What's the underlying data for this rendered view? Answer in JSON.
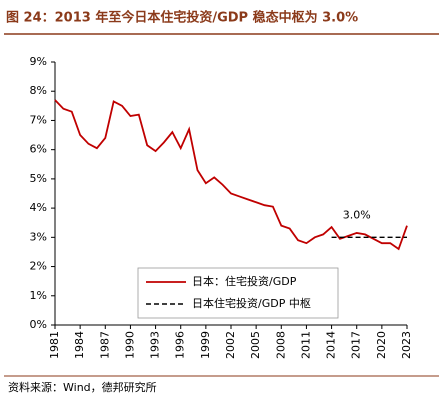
{
  "chart_data": {
    "type": "line",
    "title": "图 24：2013 年至今日本住宅投资/GDP 稳态中枢为 3.0%",
    "source": "资料来源：Wind，德邦研究所",
    "annotation": "3.0%",
    "x": [
      1981,
      1982,
      1983,
      1984,
      1985,
      1986,
      1987,
      1988,
      1989,
      1990,
      1991,
      1992,
      1993,
      1994,
      1995,
      1996,
      1997,
      1998,
      1999,
      2000,
      2001,
      2002,
      2003,
      2004,
      2005,
      2006,
      2007,
      2008,
      2009,
      2010,
      2011,
      2012,
      2013,
      2014,
      2015,
      2016,
      2017,
      2018,
      2019,
      2020,
      2021,
      2022,
      2023
    ],
    "series": [
      {
        "name": "日本：住宅投资/GDP",
        "color": "#c00000",
        "dashed": false,
        "values": [
          7.7,
          7.4,
          7.3,
          6.5,
          6.2,
          6.05,
          6.4,
          7.65,
          7.5,
          7.15,
          7.2,
          6.15,
          5.95,
          6.25,
          6.6,
          6.05,
          6.7,
          5.3,
          4.85,
          5.05,
          4.8,
          4.5,
          4.4,
          4.3,
          4.2,
          4.1,
          4.05,
          3.4,
          3.3,
          2.9,
          2.8,
          3.0,
          3.1,
          3.35,
          2.95,
          3.05,
          3.15,
          3.1,
          2.95,
          2.8,
          2.8,
          2.6,
          3.4
        ]
      },
      {
        "name": "日本住宅投资/GDP 中枢",
        "color": "#000000",
        "dashed": true,
        "values": [
          null,
          null,
          null,
          null,
          null,
          null,
          null,
          null,
          null,
          null,
          null,
          null,
          null,
          null,
          null,
          null,
          null,
          null,
          null,
          null,
          null,
          null,
          null,
          null,
          null,
          null,
          null,
          null,
          null,
          null,
          null,
          null,
          null,
          3.0,
          3.0,
          3.0,
          3.0,
          3.0,
          3.0,
          3.0,
          3.0,
          3.0,
          3.0
        ]
      }
    ],
    "xlim": [
      1981,
      2023
    ],
    "xticks": [
      1981,
      1984,
      1987,
      1990,
      1993,
      1996,
      1999,
      2002,
      2005,
      2008,
      2011,
      2014,
      2017,
      2020,
      2023
    ],
    "ylim": [
      0,
      9
    ],
    "yticks": [
      {
        "value": 0,
        "label": "0%"
      },
      {
        "value": 1,
        "label": "1%"
      },
      {
        "value": 2,
        "label": "2%"
      },
      {
        "value": 3,
        "label": "3%"
      },
      {
        "value": 4,
        "label": "4%"
      },
      {
        "value": 5,
        "label": "5%"
      },
      {
        "value": 6,
        "label": "6%"
      },
      {
        "value": 7,
        "label": "7%"
      },
      {
        "value": 8,
        "label": "8%"
      },
      {
        "value": 9,
        "label": "9%"
      }
    ],
    "grid": false
  }
}
